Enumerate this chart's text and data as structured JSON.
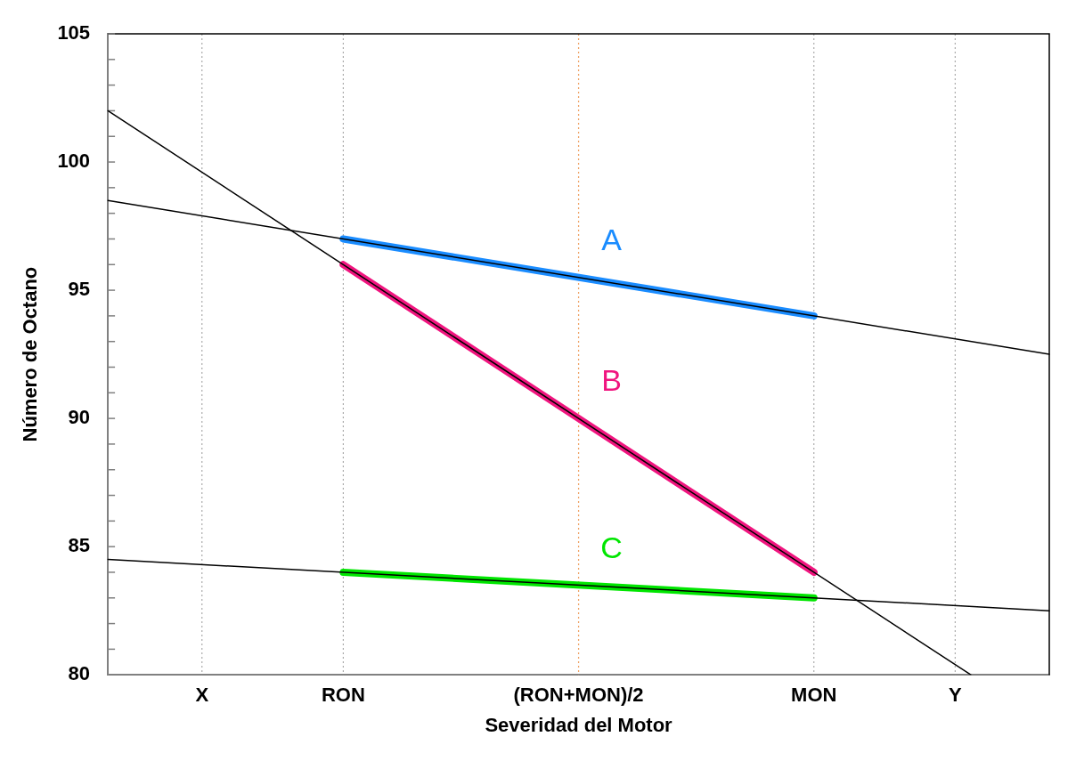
{
  "chart_data": {
    "type": "line",
    "xlabel": "Severidad del Motor",
    "ylabel": "Número de Octano",
    "categories": [
      null,
      null,
      null,
      null,
      null,
      null,
      "X",
      null,
      null,
      null,
      null,
      null,
      null,
      null,
      null,
      "RON",
      null,
      null,
      null,
      null,
      null,
      null,
      null,
      null,
      null,
      null,
      null,
      null,
      null,
      null,
      "(RON+MON)/2",
      null,
      null,
      null,
      null,
      null,
      null,
      null,
      null,
      null,
      null,
      null,
      null,
      null,
      null,
      "MON",
      null,
      null,
      null,
      null,
      null,
      null,
      null,
      null,
      "Y",
      null,
      null,
      null,
      null,
      null,
      null
    ],
    "ylim": [
      80,
      105
    ],
    "yticks": [
      80,
      {
        "value": 81,
        "label": null
      },
      {
        "value": 82,
        "label": null
      },
      {
        "value": 83,
        "label": null
      },
      {
        "value": 84,
        "label": null
      },
      85,
      {
        "value": 86,
        "label": null
      },
      {
        "value": 87,
        "label": null
      },
      {
        "value": 88,
        "label": null
      },
      {
        "value": 89,
        "label": null
      },
      90,
      {
        "value": 91,
        "label": null
      },
      {
        "value": 92,
        "label": null
      },
      {
        "value": 93,
        "label": null
      },
      {
        "value": 94,
        "label": null
      },
      95,
      {
        "value": 96,
        "label": null
      },
      {
        "value": 97,
        "label": null
      },
      {
        "value": 98,
        "label": null
      },
      {
        "value": 99,
        "label": null
      },
      100,
      {
        "value": 101,
        "label": null
      },
      {
        "value": 102,
        "label": null
      },
      {
        "value": 103,
        "label": null
      },
      {
        "value": 104,
        "label": null
      },
      105
    ],
    "grid": "x",
    "marker": "none",
    "legend": false,
    "ref_lines": [
      {
        "axis": "x",
        "value": "(RON+MON)/2",
        "color": "#f0a060",
        "line_style": "dotted"
      }
    ],
    "series": [
      {
        "name": "A",
        "color": "#1a8cff",
        "values": [
          null,
          null,
          null,
          null,
          null,
          null,
          null,
          null,
          null,
          null,
          null,
          null,
          null,
          null,
          null,
          97,
          null,
          null,
          null,
          null,
          null,
          null,
          null,
          null,
          null,
          null,
          null,
          null,
          null,
          null,
          null,
          null,
          null,
          null,
          null,
          null,
          null,
          null,
          null,
          null,
          null,
          null,
          null,
          null,
          null,
          94,
          null,
          null,
          null,
          null,
          null,
          null,
          null,
          null,
          null,
          null,
          null,
          null,
          null,
          null,
          null
        ]
      },
      {
        "name": "B",
        "color": "#f0157f",
        "values": [
          null,
          null,
          null,
          null,
          null,
          null,
          null,
          null,
          null,
          null,
          null,
          null,
          null,
          null,
          null,
          96,
          null,
          null,
          null,
          null,
          null,
          null,
          null,
          null,
          null,
          null,
          null,
          null,
          null,
          null,
          null,
          null,
          null,
          null,
          null,
          null,
          null,
          null,
          null,
          null,
          null,
          null,
          null,
          null,
          null,
          84,
          null,
          null,
          null,
          null,
          null,
          null,
          null,
          null,
          null,
          null,
          null,
          null,
          null,
          null,
          null
        ]
      },
      {
        "name": "C",
        "color": "#00e600",
        "values": [
          null,
          null,
          null,
          null,
          null,
          null,
          null,
          null,
          null,
          null,
          null,
          null,
          null,
          null,
          null,
          84,
          null,
          null,
          null,
          null,
          null,
          null,
          null,
          null,
          null,
          null,
          null,
          null,
          null,
          null,
          null,
          null,
          null,
          null,
          null,
          null,
          null,
          null,
          null,
          null,
          null,
          null,
          null,
          null,
          null,
          83,
          null,
          null,
          null,
          null,
          null,
          null,
          null,
          null,
          null,
          null,
          null,
          null,
          null,
          null,
          null
        ]
      },
      {
        "color": "#000000",
        "values": [
          98.5,
          null,
          null,
          null,
          null,
          null,
          null,
          null,
          null,
          null,
          null,
          null,
          null,
          null,
          null,
          null,
          null,
          null,
          null,
          null,
          null,
          null,
          null,
          null,
          null,
          null,
          null,
          null,
          null,
          null,
          null,
          null,
          null,
          null,
          null,
          null,
          null,
          null,
          null,
          null,
          null,
          null,
          null,
          null,
          null,
          null,
          null,
          null,
          null,
          null,
          null,
          null,
          null,
          null,
          null,
          null,
          null,
          null,
          null,
          null,
          92.5
        ]
      },
      {
        "color": "#000000",
        "values": [
          102,
          null,
          null,
          null,
          null,
          null,
          null,
          null,
          null,
          null,
          null,
          null,
          null,
          null,
          null,
          null,
          null,
          null,
          null,
          null,
          null,
          null,
          null,
          null,
          null,
          null,
          null,
          null,
          null,
          null,
          null,
          null,
          null,
          null,
          null,
          null,
          null,
          null,
          null,
          null,
          null,
          null,
          null,
          null,
          null,
          null,
          null,
          null,
          null,
          null,
          null,
          null,
          null,
          null,
          null,
          80,
          null,
          null,
          null,
          null,
          null
        ]
      },
      {
        "color": "#000000",
        "values": [
          84.5,
          null,
          null,
          null,
          null,
          null,
          null,
          null,
          null,
          null,
          null,
          null,
          null,
          null,
          null,
          null,
          null,
          null,
          null,
          null,
          null,
          null,
          null,
          null,
          null,
          null,
          null,
          null,
          null,
          null,
          null,
          null,
          null,
          null,
          null,
          null,
          null,
          null,
          null,
          null,
          null,
          null,
          null,
          null,
          null,
          null,
          null,
          null,
          null,
          null,
          null,
          null,
          null,
          null,
          null,
          null,
          null,
          null,
          null,
          null,
          82.5
        ]
      }
    ]
  }
}
